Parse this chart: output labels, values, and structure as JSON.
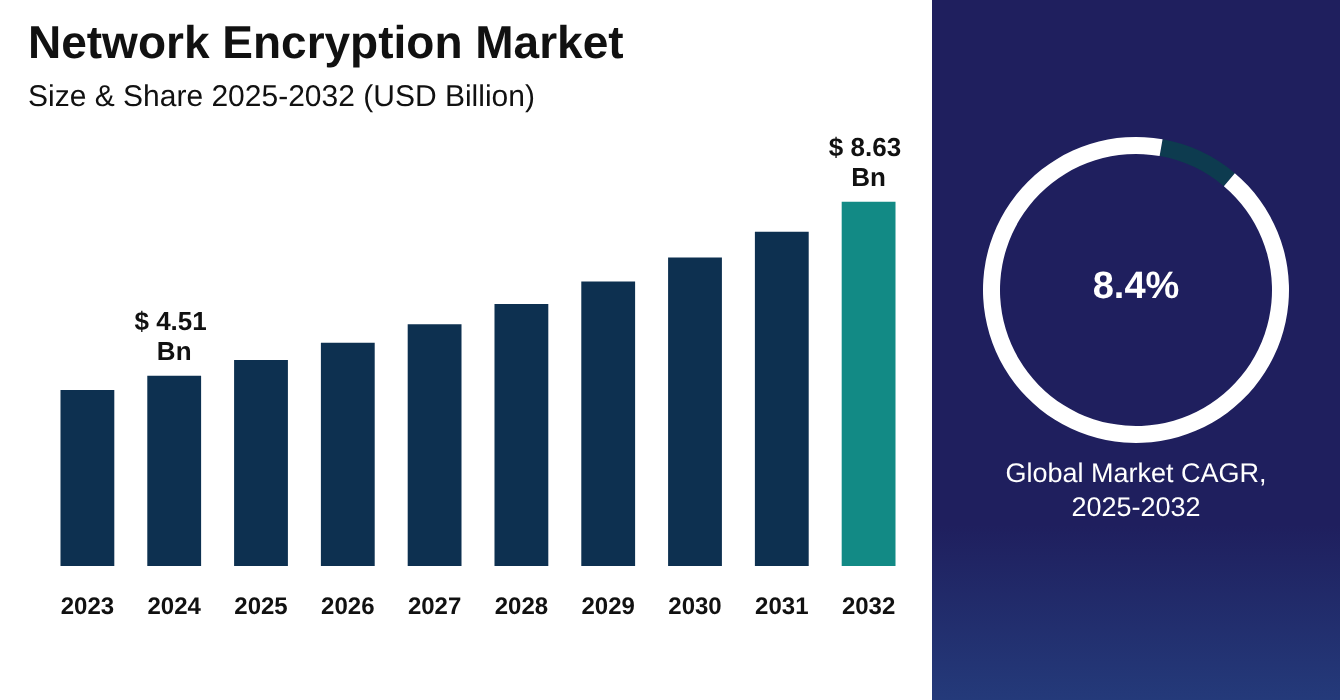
{
  "chart_data": [
    {
      "type": "bar",
      "title": "Network Encryption Market",
      "subtitle": "Size & Share 2025-2032 (USD Billion)",
      "categories": [
        "2023",
        "2024",
        "2025",
        "2026",
        "2027",
        "2028",
        "2029",
        "2030",
        "2031",
        "2032"
      ],
      "values": [
        4.17,
        4.51,
        4.88,
        5.29,
        5.73,
        6.21,
        6.74,
        7.31,
        7.92,
        8.63
      ],
      "colors": [
        "#0d3050",
        "#0d3050",
        "#0d3050",
        "#0d3050",
        "#0d3050",
        "#0d3050",
        "#0d3050",
        "#0d3050",
        "#0d3050",
        "#128a85"
      ],
      "value_labels": [
        null,
        "$ 4.51 Bn",
        null,
        null,
        null,
        null,
        null,
        null,
        null,
        "$ 8.63 Bn"
      ],
      "tick_labels": "x"
    },
    {
      "type": "donut",
      "title": "Global Market CAGR, 2025-2032",
      "categories": [
        null,
        null
      ],
      "values": [
        8.4,
        91.6
      ],
      "colors": [
        "#0d3b4f",
        "#ffffff"
      ],
      "annotations": [
        "8.4%"
      ]
    }
  ]
}
